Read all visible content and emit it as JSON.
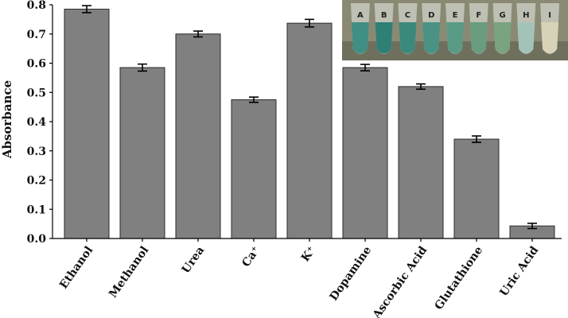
{
  "chart_data": {
    "type": "bar",
    "ylabel": "Absorbance",
    "xlabel": "",
    "ylim": [
      0,
      0.8
    ],
    "yticks": [
      0.0,
      0.1,
      0.2,
      0.3,
      0.4,
      0.5,
      0.6,
      0.7,
      0.8
    ],
    "ytick_labels": [
      "0.0",
      "0.1",
      "0.2",
      "0.3",
      "0.4",
      "0.5",
      "0.6",
      "0.7",
      "0.8"
    ],
    "categories": [
      "Ethanol",
      "Methanol",
      "Urea",
      "Ca⁺",
      "K⁺",
      "Dopamine",
      "Ascorbic Acid",
      "Glutathione",
      "Uric Acid"
    ],
    "values": [
      0.785,
      0.585,
      0.7,
      0.475,
      0.737,
      0.585,
      0.52,
      0.34,
      0.043
    ],
    "errors": [
      0.012,
      0.012,
      0.01,
      0.009,
      0.013,
      0.011,
      0.009,
      0.011,
      0.009
    ],
    "bar_color": "#808080",
    "grid": false,
    "inset": {
      "labels": [
        "A",
        "B",
        "C",
        "D",
        "E",
        "F",
        "G",
        "H",
        "I"
      ],
      "tube_colors": [
        "#3f8f84",
        "#2e7f76",
        "#3a8a7c",
        "#4a9384",
        "#5a9b86",
        "#6a9c80",
        "#7aa37f",
        "#a4c3b8",
        "#d8d2b8"
      ],
      "background": "#8a8a74"
    }
  }
}
